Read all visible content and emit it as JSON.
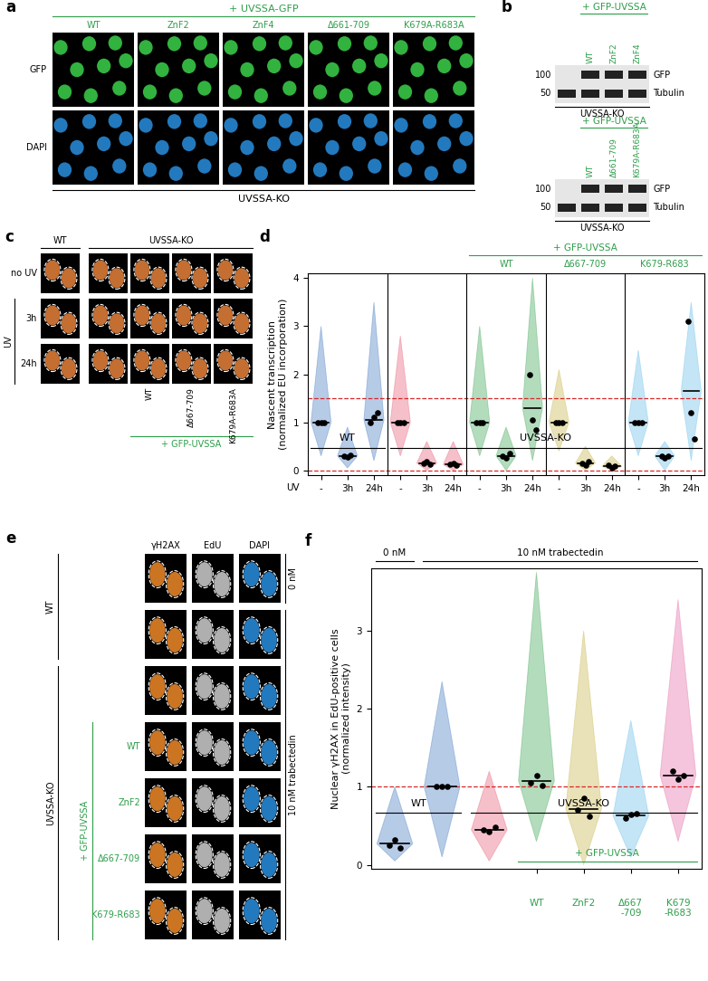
{
  "panels": {
    "a": {
      "letter": "a",
      "header": "+ UVSSA-GFP",
      "columns": [
        "WT",
        "ZnF2",
        "ZnF4",
        "Δ661-709",
        "K679A-R683A"
      ],
      "rows": [
        {
          "label": "GFP",
          "color": "#3cd24a"
        },
        {
          "label": "DAPI",
          "color": "#2a8fe0"
        }
      ],
      "footer": "UVSSA-KO"
    },
    "b": {
      "letter": "b",
      "blots": [
        {
          "header": "+ GFP-UVSSA",
          "lanes": [
            null,
            "WT",
            "ZnF2",
            "ZnF4"
          ],
          "rows": [
            "GFP",
            "Tubulin"
          ],
          "markers": [
            100,
            50
          ],
          "footer": "UVSSA-KO"
        },
        {
          "header": "+ GFP-UVSSA",
          "lanes": [
            null,
            "WT",
            "Δ661-709",
            "K679A-R683A"
          ],
          "rows": [
            "GFP",
            "Tubulin"
          ],
          "markers": [
            100,
            50
          ],
          "footer": "UVSSA-KO"
        }
      ]
    },
    "c": {
      "letter": "c",
      "color": "#e8823a",
      "top_groups": [
        {
          "label": "WT",
          "first": 0,
          "last": 0
        },
        {
          "label": "UVSSA-KO",
          "first": 1,
          "last": 4
        }
      ],
      "rows": [
        "no UV",
        "3h",
        "24h"
      ],
      "row_group": {
        "label": "UV",
        "first": 1,
        "last": 2
      },
      "column_labels": [
        null,
        null,
        "WT",
        "Δ667-709",
        "K679A-R683A"
      ],
      "bottom_group": {
        "label": "+ GFP-UVSSA",
        "first": 2,
        "last": 4
      }
    },
    "e": {
      "letter": "e",
      "channels": [
        {
          "label": "γH2AX",
          "color": "#f08a2a"
        },
        {
          "label": "EdU",
          "color": "#cfcfcf"
        },
        {
          "label": "DAPI",
          "color": "#2a8fe0"
        }
      ],
      "row_labels": [
        null,
        null,
        null,
        "WT",
        "ZnF2",
        "Δ667-709",
        "K679-R683"
      ],
      "left_groups": [
        {
          "label": "WT",
          "first": 0,
          "last": 1
        },
        {
          "label": "UVSSA-KO",
          "first": 2,
          "last": 6
        }
      ],
      "inner_group": {
        "label": "+ GFP-UVSSA",
        "first": 3,
        "last": 6
      },
      "right_groups": [
        {
          "label": "0 nM",
          "first": 0,
          "last": 0
        },
        {
          "label": "10 nM trabectedin",
          "first": 1,
          "last": 6
        }
      ]
    }
  },
  "chart_data": [
    {
      "letter": "d",
      "type": "strip",
      "y_label": "Nascent transcription\n(normalized EU incorporation)",
      "x_label": "UV",
      "categories": [
        "-",
        "3h",
        "24h",
        "-",
        "3h",
        "24h",
        "-",
        "3h",
        "24h",
        "-",
        "3h",
        "24h",
        "-",
        "3h",
        "24h"
      ],
      "values": [
        1.0,
        0.3,
        1.05,
        1.0,
        0.15,
        0.12,
        1.0,
        0.3,
        1.3,
        1.0,
        0.15,
        0.08,
        1.0,
        0.3,
        1.65
      ],
      "replicates": [
        [
          1.0,
          1.0,
          1.0
        ],
        [
          0.3,
          0.28,
          0.32
        ],
        [
          1.0,
          1.1,
          1.2
        ],
        [
          1.0,
          1.0,
          1.0
        ],
        [
          0.15,
          0.18,
          0.12
        ],
        [
          0.12,
          0.15,
          0.1
        ],
        [
          1.0,
          1.0,
          1.0
        ],
        [
          0.3,
          0.25,
          0.35
        ],
        [
          2.0,
          1.05,
          0.85
        ],
        [
          1.0,
          1.0,
          1.0
        ],
        [
          0.15,
          0.1,
          0.18
        ],
        [
          0.1,
          0.05,
          0.08
        ],
        [
          1.0,
          1.0,
          1.0
        ],
        [
          0.3,
          0.25,
          0.3
        ],
        [
          3.1,
          1.2,
          0.65
        ]
      ],
      "spread": [
        [
          0.3,
          3.0
        ],
        [
          0.05,
          0.9
        ],
        [
          0.2,
          3.5
        ],
        [
          0.3,
          2.8
        ],
        [
          0.0,
          0.6
        ],
        [
          0.0,
          0.6
        ],
        [
          0.3,
          3.0
        ],
        [
          0.0,
          0.9
        ],
        [
          0.2,
          4.0
        ],
        [
          0.4,
          2.1
        ],
        [
          0.0,
          0.5
        ],
        [
          0.0,
          0.3
        ],
        [
          0.3,
          2.5
        ],
        [
          0.0,
          0.6
        ],
        [
          0.2,
          3.5
        ]
      ],
      "colors": [
        "#4a7fc1",
        "#4a7fc1",
        "#4a7fc1",
        "#e8637c",
        "#e8637c",
        "#e8637c",
        "#43a85a",
        "#43a85a",
        "#43a85a",
        "#c8b84e",
        "#c8b84e",
        "#c8b84e",
        "#6cc0ea",
        "#6cc0ea",
        "#6cc0ea"
      ],
      "ylim": [
        -0.1,
        4.1
      ],
      "yticks": [
        0,
        1,
        2,
        3,
        4
      ],
      "reference_lines": [
        0,
        1.5
      ],
      "bottom_groups": [
        {
          "label": "WT",
          "first": 0,
          "last": 2
        },
        {
          "label": "UVSSA-KO",
          "first": 3,
          "last": 14
        }
      ],
      "top_groups": [
        {
          "label": "+ GFP-UVSSA",
          "first": 6,
          "last": 14,
          "color": "#2e9e4a"
        }
      ],
      "top_sublabels": [
        {
          "label": "WT",
          "first": 6,
          "last": 8,
          "color": "#2e9e4a"
        },
        {
          "label": "Δ667-709",
          "first": 9,
          "last": 11,
          "color": "#2e9e4a"
        },
        {
          "label": "K679-R683",
          "first": 12,
          "last": 14,
          "color": "#2e9e4a"
        }
      ]
    },
    {
      "letter": "f",
      "type": "strip",
      "y_label": "Nuclear γH2AX in EdU-positive cells\n(normalized intensity)",
      "categories": [
        null,
        null,
        null,
        "WT",
        "ZnF2",
        "Δ667\n-709",
        "K679\n-R683"
      ],
      "values": [
        0.27,
        1.0,
        0.45,
        1.08,
        0.72,
        0.63,
        1.15
      ],
      "replicates": [
        [
          0.25,
          0.32,
          0.22
        ],
        [
          1.0,
          1.0,
          1.0
        ],
        [
          0.45,
          0.42,
          0.48
        ],
        [
          1.05,
          1.15,
          1.02
        ],
        [
          0.7,
          0.85,
          0.62
        ],
        [
          0.6,
          0.65,
          0.66
        ],
        [
          1.2,
          1.1,
          1.15
        ]
      ],
      "spread": [
        [
          0.05,
          1.0
        ],
        [
          0.1,
          2.35
        ],
        [
          0.05,
          1.2
        ],
        [
          0.3,
          3.75
        ],
        [
          0.0,
          3.0
        ],
        [
          0.1,
          1.85
        ],
        [
          0.3,
          3.4
        ]
      ],
      "colors": [
        "#4a7fc1",
        "#4a7fc1",
        "#e8637c",
        "#43a85a",
        "#c8b84e",
        "#6cc0ea",
        "#e46fa8"
      ],
      "ylim": [
        -0.05,
        3.8
      ],
      "yticks": [
        0,
        1,
        2,
        3
      ],
      "reference_lines": [
        1
      ],
      "bottom_groups": [
        {
          "label": "WT",
          "first": 0,
          "last": 1
        },
        {
          "label": "UVSSA-KO",
          "first": 2,
          "last": 6
        }
      ],
      "mid_groups": [
        {
          "label": "+ GFP-UVSSA",
          "first": 3,
          "last": 6,
          "color": "#2e9e4a"
        }
      ],
      "top_groups": [
        {
          "label": "0 nM",
          "first": 0,
          "last": 0
        },
        {
          "label": "10 nM trabectedin",
          "first": 1,
          "last": 6
        }
      ]
    }
  ]
}
